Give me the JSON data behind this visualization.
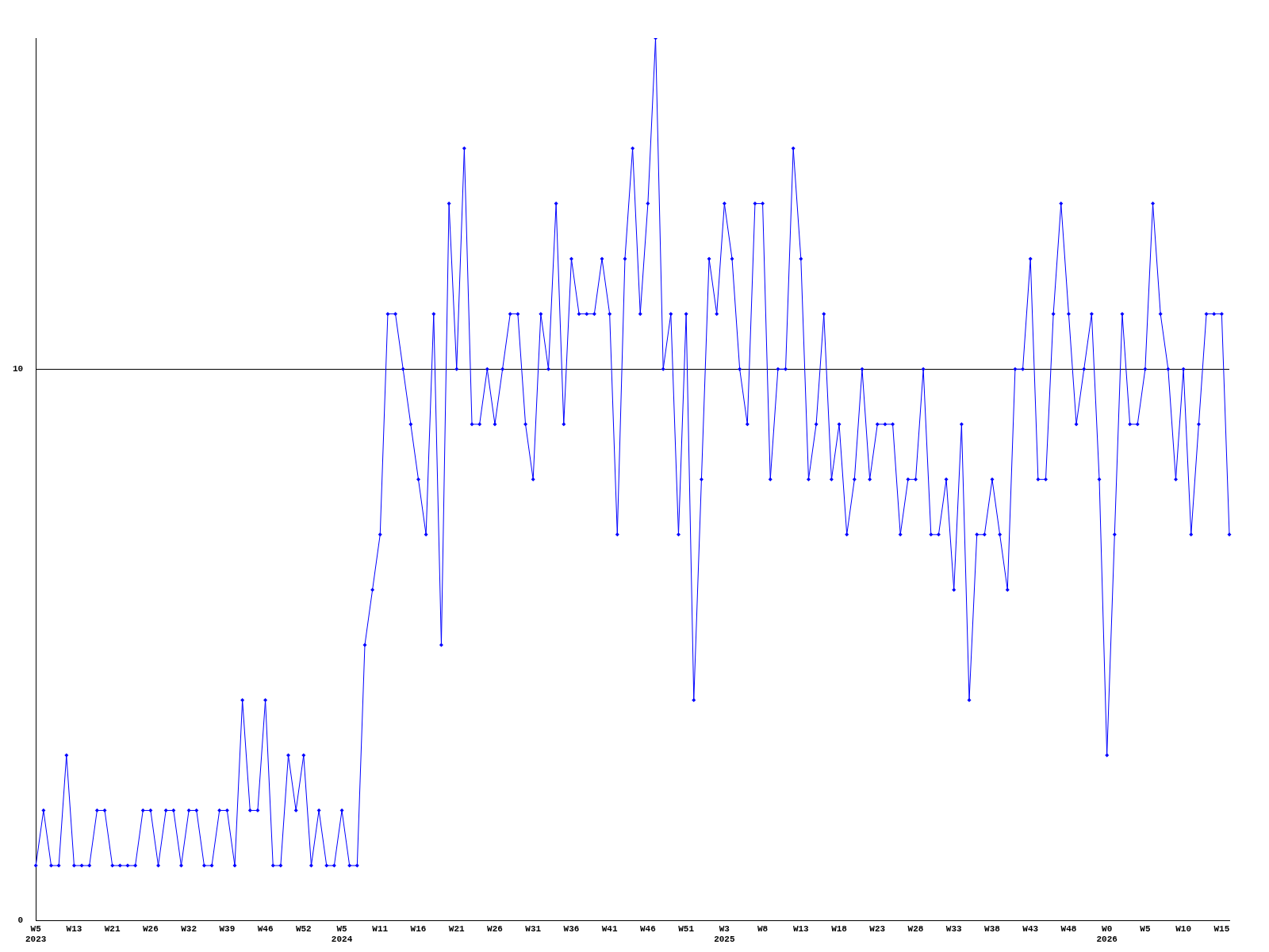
{
  "chart_data": {
    "type": "line",
    "categories": [
      "W5\n2023",
      null,
      null,
      null,
      null,
      "W13",
      null,
      null,
      null,
      null,
      "W21",
      null,
      null,
      null,
      null,
      "W26",
      null,
      null,
      null,
      null,
      "W32",
      null,
      null,
      null,
      null,
      "W39",
      null,
      null,
      null,
      null,
      "W46",
      null,
      null,
      null,
      null,
      "W52",
      null,
      null,
      null,
      null,
      "W5\n2024",
      null,
      null,
      null,
      null,
      "W11",
      null,
      null,
      null,
      null,
      "W16",
      null,
      null,
      null,
      null,
      "W21",
      null,
      null,
      null,
      null,
      "W26",
      null,
      null,
      null,
      null,
      "W31",
      null,
      null,
      null,
      null,
      "W36",
      null,
      null,
      null,
      null,
      "W41",
      null,
      null,
      null,
      null,
      "W46",
      null,
      null,
      null,
      null,
      "W51",
      null,
      null,
      null,
      null,
      "W3\n2025",
      null,
      null,
      null,
      null,
      "W8",
      null,
      null,
      null,
      null,
      "W13",
      null,
      null,
      null,
      null,
      "W18",
      null,
      null,
      null,
      null,
      "W23",
      null,
      null,
      null,
      null,
      "W28",
      null,
      null,
      null,
      null,
      "W33",
      null,
      null,
      null,
      null,
      "W38",
      null,
      null,
      null,
      null,
      "W43",
      null,
      null,
      null,
      null,
      "W48",
      null,
      null,
      null,
      null,
      "W0\n2026",
      null,
      null,
      null,
      null,
      "W5",
      null,
      null,
      null,
      null,
      "W10",
      null,
      null,
      null,
      null,
      "W15",
      null
    ],
    "series": [
      {
        "color": "#0000ff",
        "values": [
          1,
          2,
          1,
          1,
          3,
          1,
          1,
          1,
          2,
          2,
          1,
          1,
          1,
          1,
          2,
          2,
          1,
          2,
          2,
          1,
          2,
          2,
          1,
          1,
          2,
          2,
          1,
          4,
          2,
          2,
          4,
          1,
          1,
          3,
          2,
          3,
          1,
          2,
          1,
          1,
          2,
          1,
          1,
          5,
          6,
          7,
          11,
          11,
          10,
          9,
          8,
          7,
          11,
          5,
          13,
          10,
          14,
          9,
          9,
          10,
          9,
          10,
          11,
          11,
          9,
          8,
          11,
          10,
          13,
          9,
          12,
          11,
          11,
          11,
          12,
          11,
          7,
          12,
          14,
          11,
          13,
          16,
          10,
          11,
          7,
          11,
          4,
          8,
          12,
          11,
          13,
          12,
          10,
          9,
          13,
          13,
          8,
          10,
          10,
          14,
          12,
          8,
          9,
          11,
          8,
          9,
          7,
          8,
          10,
          8,
          9,
          9,
          9,
          7,
          8,
          8,
          10,
          7,
          7,
          8,
          6,
          9,
          4,
          7,
          7,
          8,
          7,
          6,
          10,
          10,
          12,
          8,
          8,
          11,
          13,
          11,
          9,
          10,
          11,
          8,
          3,
          7,
          11,
          9,
          9,
          10,
          13,
          11,
          10,
          8,
          10,
          7,
          9,
          11,
          11,
          11,
          7
        ]
      }
    ],
    "ylim": [
      0,
      16
    ],
    "yticks": [
      0,
      10
    ],
    "grid": "y",
    "legend": false,
    "marker": "diamond",
    "line_style": "solid"
  }
}
